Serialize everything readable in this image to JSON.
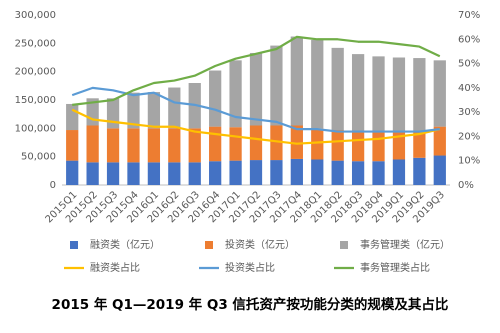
{
  "chart_data": {
    "type": "bar",
    "stacked": true,
    "title": "2015 年 Q1—2019 年 Q3 信托资产按功能分类的规模及其占比",
    "categories": [
      "2015Q1",
      "2015Q2",
      "2015Q3",
      "2015Q4",
      "2016Q1",
      "2016Q2",
      "2016Q3",
      "2016Q4",
      "2017Q1",
      "2017Q2",
      "2017Q3",
      "2017Q4",
      "2018Q1",
      "2018Q2",
      "2018Q3",
      "2018Q4",
      "2019Q1",
      "2019Q2",
      "2019Q3"
    ],
    "series": [
      {
        "name": "融资类（亿元）",
        "type": "bar",
        "color": "#4472c4",
        "values": [
          43000,
          40000,
          40000,
          40000,
          40000,
          40000,
          40000,
          42000,
          43000,
          44000,
          44000,
          46000,
          45000,
          43000,
          42000,
          42000,
          45000,
          48000,
          52000
        ]
      },
      {
        "name": "投资类（亿元）",
        "type": "bar",
        "color": "#ed7d31",
        "values": [
          54000,
          65000,
          60000,
          60000,
          60000,
          60000,
          60000,
          61000,
          59000,
          61000,
          61000,
          59000,
          55000,
          54000,
          53000,
          51000,
          50000,
          48000,
          51000
        ]
      },
      {
        "name": "事务管理类（亿元）",
        "type": "bar",
        "color": "#a5a5a5",
        "values": [
          46000,
          48000,
          53000,
          63000,
          64000,
          72000,
          80000,
          99000,
          118000,
          128000,
          141000,
          157000,
          156000,
          145000,
          136000,
          134000,
          130000,
          128000,
          117000
        ]
      },
      {
        "name": "融资类占比",
        "type": "line",
        "axis": "y2",
        "color": "#ffc000",
        "values": [
          31,
          27,
          26,
          25,
          24,
          24,
          22,
          21,
          20,
          19,
          18,
          17,
          17.5,
          18,
          18.5,
          19,
          20,
          21,
          23
        ]
      },
      {
        "name": "投资类占比",
        "type": "line",
        "axis": "y2",
        "color": "#5b9bd5",
        "values": [
          37,
          40,
          39,
          37,
          38,
          34,
          33,
          31,
          28,
          27,
          26,
          23,
          23,
          22,
          22,
          22,
          22,
          22,
          23
        ]
      },
      {
        "name": "事务管理类占比",
        "type": "line",
        "axis": "y2",
        "color": "#70ad47",
        "values": [
          33,
          34,
          35,
          39,
          42,
          43,
          45,
          49,
          52,
          54,
          56,
          61,
          60,
          60,
          59,
          59,
          58,
          57,
          53
        ]
      }
    ],
    "ylim": [
      0,
      300000
    ],
    "yticks": [
      0,
      {
        "value": 50000,
        "label": "50,000"
      },
      {
        "value": 100000,
        "label": "100,000"
      },
      {
        "value": 150000,
        "label": "150,000"
      },
      {
        "value": 200000,
        "label": "200,000"
      },
      {
        "value": 250000,
        "label": "250,000"
      },
      {
        "value": 300000,
        "label": "300,000"
      }
    ],
    "y2lim": [
      0,
      70
    ],
    "y2ticks": [
      {
        "value": 0,
        "label": "0%"
      },
      {
        "value": 10,
        "label": "10%"
      },
      {
        "value": 20,
        "label": "20%"
      },
      {
        "value": 30,
        "label": "30%"
      },
      {
        "value": 40,
        "label": "40%"
      },
      {
        "value": 50,
        "label": "50%"
      },
      {
        "value": 60,
        "label": "60%"
      },
      {
        "value": 70,
        "label": "70%"
      }
    ],
    "grid": false,
    "legend": "bottom"
  }
}
